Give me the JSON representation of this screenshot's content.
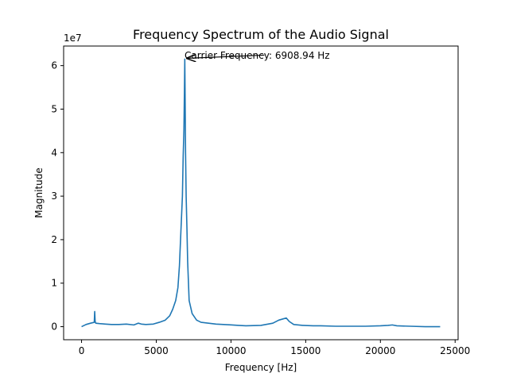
{
  "chart_data": {
    "type": "line",
    "title": "Frequency Spectrum of the Audio Signal",
    "xlabel": "Frequency [Hz]",
    "ylabel": "Magnitude",
    "y_multiplier_label": "1e7",
    "xlim": [
      -1200,
      25200
    ],
    "ylim": [
      -0.3,
      6.45
    ],
    "y_unit_scale": 10000000,
    "x_ticks": [
      0,
      5000,
      10000,
      15000,
      20000,
      25000
    ],
    "x_tick_labels": [
      "0",
      "5000",
      "10000",
      "15000",
      "20000",
      "25000"
    ],
    "y_ticks": [
      0,
      1,
      2,
      3,
      4,
      5,
      6
    ],
    "y_tick_labels": [
      "0",
      "1",
      "2",
      "3",
      "4",
      "5",
      "6"
    ],
    "grid": false,
    "line_color": "#1f77b4",
    "series": [
      {
        "x": [
          0,
          300,
          600,
          850,
          880,
          910,
          950,
          1200,
          1600,
          2000,
          2500,
          3000,
          3500,
          3800,
          4000,
          4300,
          4800,
          5200,
          5600,
          5900,
          6100,
          6300,
          6450,
          6550,
          6650,
          6700,
          6750,
          6800,
          6850,
          6880,
          6908.94,
          6930,
          6960,
          7000,
          7050,
          7100,
          7200,
          7400,
          7700,
          8000,
          8500,
          9000,
          9500,
          10000,
          10500,
          11000,
          12000,
          12800,
          13200,
          13500,
          13700,
          13900,
          14200,
          14800,
          15500,
          16000,
          17000,
          18000,
          19000,
          20000,
          20500,
          20800,
          21100,
          22000,
          23000,
          24000
        ],
        "y": [
          0.0,
          0.05,
          0.08,
          0.1,
          0.35,
          0.12,
          0.08,
          0.07,
          0.06,
          0.05,
          0.05,
          0.06,
          0.04,
          0.08,
          0.06,
          0.05,
          0.06,
          0.1,
          0.15,
          0.25,
          0.4,
          0.6,
          0.9,
          1.4,
          2.2,
          2.6,
          3.0,
          3.9,
          4.5,
          5.3,
          6.15,
          5.3,
          4.0,
          3.0,
          2.3,
          1.5,
          0.6,
          0.3,
          0.15,
          0.1,
          0.08,
          0.06,
          0.05,
          0.04,
          0.03,
          0.02,
          0.03,
          0.08,
          0.15,
          0.18,
          0.2,
          0.12,
          0.05,
          0.03,
          0.02,
          0.02,
          0.01,
          0.01,
          0.01,
          0.02,
          0.03,
          0.04,
          0.02,
          0.01,
          0.0,
          0.0
        ]
      }
    ],
    "annotation": {
      "text": "Carrier Frequency: 6908.94 Hz",
      "target_x": 6908.94,
      "target_y": 6.15,
      "text_x": 6908.94,
      "text_y": 6.15
    }
  }
}
